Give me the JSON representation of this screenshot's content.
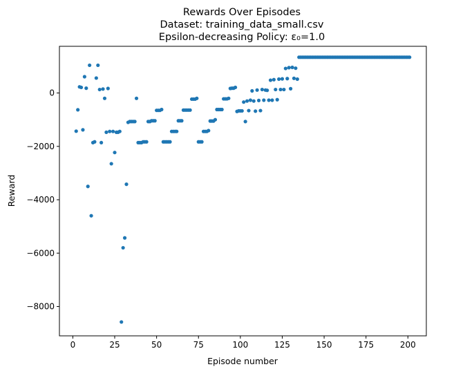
{
  "chart_data": {
    "type": "scatter",
    "title_lines": [
      "Rewards Over Episodes",
      "Dataset: training_data_small.csv",
      "Epsilon-decreasing Policy: ε₀=1.0"
    ],
    "xlabel": "Episode number",
    "ylabel": "Reward",
    "xlim": [
      -8,
      211
    ],
    "ylim": [
      -9100,
      1750
    ],
    "xticks": [
      0,
      25,
      50,
      75,
      100,
      125,
      150,
      175,
      200
    ],
    "yticks": [
      -8000,
      -6000,
      -4000,
      -2000,
      0
    ],
    "ytick_labels": [
      "−8000",
      "−6000",
      "−4000",
      "−2000",
      "0"
    ],
    "grid": false,
    "point_color": "#1f77b4",
    "points": [
      [
        2,
        -1430
      ],
      [
        3,
        -630
      ],
      [
        4,
        230
      ],
      [
        5,
        210
      ],
      [
        6,
        -1380
      ],
      [
        7,
        610
      ],
      [
        8,
        180
      ],
      [
        9,
        -3500
      ],
      [
        10,
        1040
      ],
      [
        11,
        -4600
      ],
      [
        12,
        -1860
      ],
      [
        13,
        -1830
      ],
      [
        14,
        560
      ],
      [
        15,
        1040
      ],
      [
        16,
        130
      ],
      [
        17,
        -1860
      ],
      [
        18,
        150
      ],
      [
        19,
        -200
      ],
      [
        20,
        -1470
      ],
      [
        21,
        170
      ],
      [
        22,
        -1440
      ],
      [
        23,
        -2650
      ],
      [
        24,
        -1440
      ],
      [
        25,
        -2230
      ],
      [
        26,
        -1470
      ],
      [
        27,
        -1470
      ],
      [
        28,
        -1440
      ],
      [
        29,
        -8580
      ],
      [
        30,
        -5800
      ],
      [
        31,
        -5430
      ],
      [
        32,
        -3420
      ],
      [
        33,
        -1100
      ],
      [
        34,
        -1070
      ],
      [
        35,
        -1070
      ],
      [
        36,
        -1070
      ],
      [
        37,
        -1070
      ],
      [
        38,
        -200
      ],
      [
        39,
        -1860
      ],
      [
        40,
        -1860
      ],
      [
        41,
        -1860
      ],
      [
        42,
        -1830
      ],
      [
        43,
        -1830
      ],
      [
        44,
        -1830
      ],
      [
        45,
        -1070
      ],
      [
        46,
        -1070
      ],
      [
        47,
        -1040
      ],
      [
        48,
        -1040
      ],
      [
        49,
        -1040
      ],
      [
        50,
        -650
      ],
      [
        51,
        -650
      ],
      [
        52,
        -650
      ],
      [
        53,
        -620
      ],
      [
        54,
        -1830
      ],
      [
        55,
        -1830
      ],
      [
        56,
        -1830
      ],
      [
        57,
        -1830
      ],
      [
        58,
        -1830
      ],
      [
        59,
        -1440
      ],
      [
        60,
        -1440
      ],
      [
        61,
        -1440
      ],
      [
        62,
        -1440
      ],
      [
        63,
        -1040
      ],
      [
        64,
        -1040
      ],
      [
        65,
        -1040
      ],
      [
        66,
        -640
      ],
      [
        67,
        -640
      ],
      [
        68,
        -640
      ],
      [
        69,
        -640
      ],
      [
        70,
        -640
      ],
      [
        71,
        -230
      ],
      [
        72,
        -230
      ],
      [
        73,
        -230
      ],
      [
        74,
        -200
      ],
      [
        75,
        -1830
      ],
      [
        76,
        -1830
      ],
      [
        77,
        -1830
      ],
      [
        78,
        -1440
      ],
      [
        79,
        -1440
      ],
      [
        80,
        -1440
      ],
      [
        81,
        -1410
      ],
      [
        82,
        -1050
      ],
      [
        83,
        -1050
      ],
      [
        84,
        -1050
      ],
      [
        85,
        -1000
      ],
      [
        86,
        -620
      ],
      [
        87,
        -620
      ],
      [
        88,
        -620
      ],
      [
        89,
        -620
      ],
      [
        90,
        -220
      ],
      [
        91,
        -220
      ],
      [
        92,
        -220
      ],
      [
        93,
        -200
      ],
      [
        94,
        170
      ],
      [
        95,
        180
      ],
      [
        96,
        180
      ],
      [
        97,
        210
      ],
      [
        98,
        -690
      ],
      [
        99,
        -670
      ],
      [
        100,
        -670
      ],
      [
        101,
        -670
      ],
      [
        102,
        -340
      ],
      [
        103,
        -1070
      ],
      [
        104,
        -300
      ],
      [
        105,
        -660
      ],
      [
        106,
        -270
      ],
      [
        107,
        80
      ],
      [
        108,
        -300
      ],
      [
        109,
        -680
      ],
      [
        110,
        110
      ],
      [
        111,
        -280
      ],
      [
        112,
        -660
      ],
      [
        113,
        130
      ],
      [
        114,
        -270
      ],
      [
        115,
        110
      ],
      [
        116,
        100
      ],
      [
        117,
        -270
      ],
      [
        118,
        480
      ],
      [
        119,
        -270
      ],
      [
        120,
        500
      ],
      [
        121,
        130
      ],
      [
        122,
        -250
      ],
      [
        123,
        520
      ],
      [
        124,
        130
      ],
      [
        125,
        530
      ],
      [
        126,
        130
      ],
      [
        127,
        920
      ],
      [
        128,
        540
      ],
      [
        129,
        950
      ],
      [
        130,
        160
      ],
      [
        131,
        960
      ],
      [
        132,
        550
      ],
      [
        133,
        930
      ],
      [
        134,
        520
      ],
      [
        135,
        1340
      ],
      [
        136,
        1340
      ],
      [
        137,
        1340
      ],
      [
        138,
        1340
      ],
      [
        139,
        1340
      ],
      [
        140,
        1340
      ],
      [
        141,
        1340
      ],
      [
        142,
        1340
      ],
      [
        143,
        1340
      ],
      [
        144,
        1340
      ],
      [
        145,
        1340
      ],
      [
        146,
        1340
      ],
      [
        147,
        1340
      ],
      [
        148,
        1340
      ],
      [
        149,
        1340
      ],
      [
        150,
        1340
      ],
      [
        151,
        1340
      ],
      [
        152,
        1340
      ],
      [
        153,
        1340
      ],
      [
        154,
        1340
      ],
      [
        155,
        1340
      ],
      [
        156,
        1340
      ],
      [
        157,
        1340
      ],
      [
        158,
        1340
      ],
      [
        159,
        1340
      ],
      [
        160,
        1340
      ],
      [
        161,
        1340
      ],
      [
        162,
        1340
      ],
      [
        163,
        1340
      ],
      [
        164,
        1340
      ],
      [
        165,
        1340
      ],
      [
        166,
        1340
      ],
      [
        167,
        1340
      ],
      [
        168,
        1340
      ],
      [
        169,
        1340
      ],
      [
        170,
        1340
      ],
      [
        171,
        1340
      ],
      [
        172,
        1340
      ],
      [
        173,
        1340
      ],
      [
        174,
        1340
      ],
      [
        175,
        1340
      ],
      [
        176,
        1340
      ],
      [
        177,
        1340
      ],
      [
        178,
        1340
      ],
      [
        179,
        1340
      ],
      [
        180,
        1340
      ],
      [
        181,
        1340
      ],
      [
        182,
        1340
      ],
      [
        183,
        1340
      ],
      [
        184,
        1340
      ],
      [
        185,
        1340
      ],
      [
        186,
        1340
      ],
      [
        187,
        1340
      ],
      [
        188,
        1340
      ],
      [
        189,
        1340
      ],
      [
        190,
        1340
      ],
      [
        191,
        1340
      ],
      [
        192,
        1340
      ],
      [
        193,
        1340
      ],
      [
        194,
        1340
      ],
      [
        195,
        1340
      ],
      [
        196,
        1340
      ],
      [
        197,
        1340
      ],
      [
        198,
        1340
      ],
      [
        199,
        1340
      ],
      [
        200,
        1340
      ],
      [
        201,
        1340
      ]
    ]
  }
}
